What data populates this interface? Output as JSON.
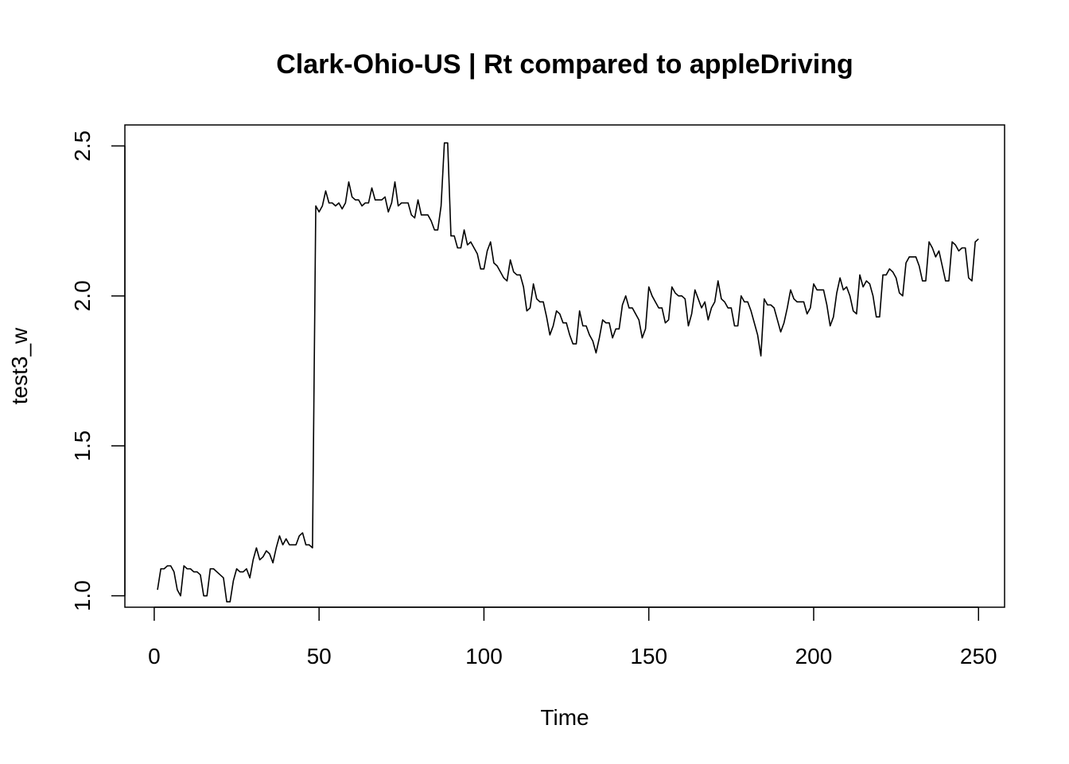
{
  "chart_data": {
    "type": "line",
    "title": "Clark-Ohio-US | Rt compared to appleDriving",
    "xlabel": "Time",
    "ylabel": "test3_w",
    "xlim": [
      -8.9,
      257.9
    ],
    "ylim": [
      0.962,
      2.57
    ],
    "x_ticks": [
      0,
      50,
      100,
      150,
      200,
      250
    ],
    "y_ticks": [
      1.0,
      1.5,
      2.0,
      2.5
    ],
    "x_tick_labels": [
      "0",
      "50",
      "100",
      "150",
      "200",
      "250"
    ],
    "y_tick_labels": [
      "1.0",
      "1.5",
      "2.0",
      "2.5"
    ],
    "grid": false,
    "legend": "none",
    "line_color": "#000000",
    "series": [
      {
        "x_start": 1,
        "x_step": 1,
        "values": [
          1.02,
          1.09,
          1.09,
          1.1,
          1.1,
          1.08,
          1.02,
          1.0,
          1.1,
          1.09,
          1.09,
          1.08,
          1.08,
          1.07,
          1.0,
          1.0,
          1.09,
          1.09,
          1.08,
          1.07,
          1.06,
          0.98,
          0.98,
          1.05,
          1.09,
          1.08,
          1.08,
          1.09,
          1.06,
          1.12,
          1.16,
          1.12,
          1.13,
          1.15,
          1.14,
          1.11,
          1.16,
          1.2,
          1.17,
          1.19,
          1.17,
          1.17,
          1.17,
          1.2,
          1.21,
          1.17,
          1.17,
          1.16,
          2.3,
          2.28,
          2.3,
          2.35,
          2.31,
          2.31,
          2.3,
          2.31,
          2.29,
          2.31,
          2.38,
          2.33,
          2.32,
          2.32,
          2.3,
          2.31,
          2.31,
          2.36,
          2.32,
          2.32,
          2.32,
          2.33,
          2.28,
          2.31,
          2.38,
          2.3,
          2.31,
          2.31,
          2.31,
          2.27,
          2.26,
          2.32,
          2.27,
          2.27,
          2.27,
          2.25,
          2.22,
          2.22,
          2.3,
          2.51,
          2.51,
          2.2,
          2.2,
          2.16,
          2.16,
          2.22,
          2.17,
          2.18,
          2.16,
          2.14,
          2.09,
          2.09,
          2.15,
          2.18,
          2.11,
          2.1,
          2.08,
          2.06,
          2.05,
          2.12,
          2.08,
          2.07,
          2.07,
          2.03,
          1.95,
          1.96,
          2.04,
          1.99,
          1.98,
          1.98,
          1.93,
          1.87,
          1.9,
          1.95,
          1.94,
          1.91,
          1.91,
          1.87,
          1.84,
          1.84,
          1.95,
          1.9,
          1.9,
          1.87,
          1.85,
          1.81,
          1.86,
          1.92,
          1.91,
          1.91,
          1.86,
          1.89,
          1.89,
          1.97,
          2.0,
          1.96,
          1.96,
          1.94,
          1.92,
          1.86,
          1.89,
          2.03,
          2.0,
          1.98,
          1.96,
          1.96,
          1.91,
          1.92,
          2.03,
          2.01,
          2.0,
          2.0,
          1.99,
          1.9,
          1.94,
          2.02,
          1.99,
          1.96,
          1.98,
          1.92,
          1.96,
          1.98,
          2.05,
          1.99,
          1.98,
          1.96,
          1.96,
          1.9,
          1.9,
          2.0,
          1.98,
          1.98,
          1.95,
          1.91,
          1.87,
          1.8,
          1.99,
          1.97,
          1.97,
          1.96,
          1.92,
          1.88,
          1.91,
          1.96,
          2.02,
          1.99,
          1.98,
          1.98,
          1.98,
          1.94,
          1.96,
          2.04,
          2.02,
          2.02,
          2.02,
          1.97,
          1.9,
          1.93,
          2.01,
          2.06,
          2.02,
          2.03,
          2.0,
          1.95,
          1.94,
          2.07,
          2.03,
          2.05,
          2.04,
          2.0,
          1.93,
          1.93,
          2.07,
          2.07,
          2.09,
          2.08,
          2.06,
          2.01,
          2.0,
          2.11,
          2.13,
          2.13,
          2.13,
          2.1,
          2.05,
          2.05,
          2.18,
          2.16,
          2.13,
          2.15,
          2.1,
          2.05,
          2.05,
          2.18,
          2.17,
          2.15,
          2.16,
          2.16,
          2.06,
          2.05,
          2.18,
          2.19
        ]
      }
    ]
  }
}
